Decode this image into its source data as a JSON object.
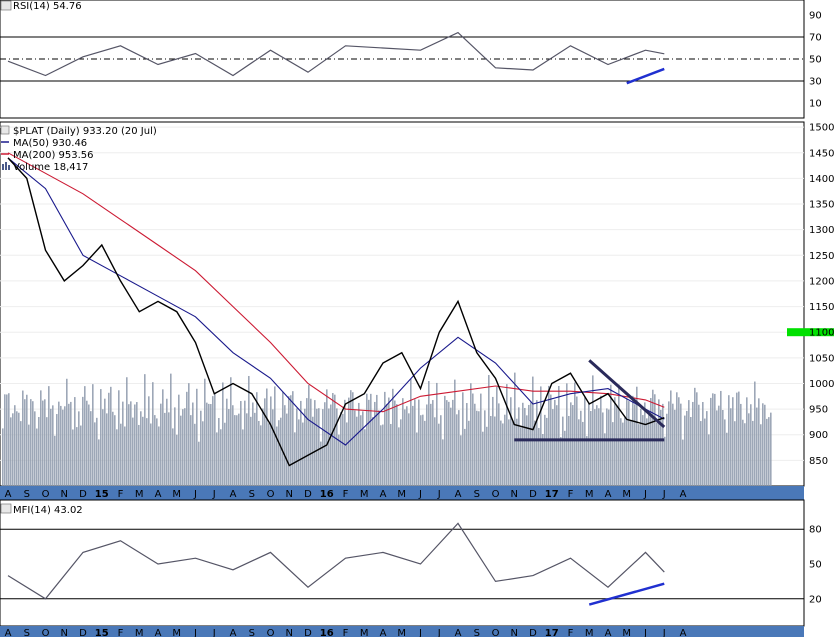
{
  "chart_data": [
    {
      "panel": "rsi",
      "type": "line",
      "title": "RSI(14) 54.76",
      "ylim": [
        0,
        100
      ],
      "y_ticks": [
        "90",
        "70",
        "50",
        "30",
        "10"
      ],
      "overbought": 70,
      "oversold": 30,
      "midline": 50,
      "series": [
        {
          "name": "RSI(14)",
          "x": [
            "Aug 2014",
            "Oct 2014",
            "Dec 2014",
            "Feb 2015",
            "Apr 2015",
            "Jun 2015",
            "Aug 2015",
            "Oct 2015",
            "Dec 2015",
            "Feb 2016",
            "Apr 2016",
            "Jun 2016",
            "Aug 2016",
            "Oct 2016",
            "Dec 2016",
            "Feb 2017",
            "Apr 2017",
            "Jun 2017",
            "Jul 2017"
          ],
          "values": [
            48,
            35,
            52,
            62,
            45,
            55,
            35,
            58,
            38,
            62,
            60,
            58,
            74,
            42,
            40,
            62,
            45,
            58,
            54.76
          ]
        }
      ],
      "trendline": {
        "x": [
          "May 2017",
          "Jul 2017"
        ],
        "values": [
          28,
          41
        ]
      }
    },
    {
      "panel": "price",
      "type": "line",
      "title": "$PLAT (Daily) 933.20 (20 Jul)",
      "legend": [
        "MA(50) 930.46",
        "MA(200) 953.56",
        "Volume 18,417"
      ],
      "ylim": [
        800,
        1510
      ],
      "y_ticks": [
        "1500",
        "1450",
        "1400",
        "1350",
        "1300",
        "1250",
        "1200",
        "1150",
        "1100",
        "1050",
        "1000",
        "950",
        "900",
        "850"
      ],
      "series": [
        {
          "name": "$PLAT",
          "x": [
            "Aug 2014",
            "Sep 2014",
            "Oct 2014",
            "Nov 2014",
            "Dec 2014",
            "Jan 2015",
            "Feb 2015",
            "Mar 2015",
            "Apr 2015",
            "May 2015",
            "Jun 2015",
            "Jul 2015",
            "Aug 2015",
            "Sep 2015",
            "Oct 2015",
            "Nov 2015",
            "Dec 2015",
            "Jan 2016",
            "Feb 2016",
            "Mar 2016",
            "Apr 2016",
            "May 2016",
            "Jun 2016",
            "Jul 2016",
            "Aug 2016",
            "Sep 2016",
            "Oct 2016",
            "Nov 2016",
            "Dec 2016",
            "Jan 2017",
            "Feb 2017",
            "Mar 2017",
            "Apr 2017",
            "May 2017",
            "Jun 2017",
            "Jul 2017"
          ],
          "values": [
            1440,
            1400,
            1260,
            1200,
            1230,
            1270,
            1200,
            1140,
            1160,
            1140,
            1080,
            980,
            1000,
            980,
            920,
            840,
            860,
            880,
            960,
            980,
            1040,
            1060,
            990,
            1100,
            1160,
            1060,
            1010,
            920,
            910,
            1000,
            1020,
            960,
            980,
            930,
            920,
            933.2
          ]
        },
        {
          "name": "MA(50) 930.46",
          "x": [
            "Aug 2014",
            "Oct 2014",
            "Dec 2014",
            "Feb 2015",
            "Apr 2015",
            "Jun 2015",
            "Aug 2015",
            "Oct 2015",
            "Dec 2015",
            "Feb 2016",
            "Apr 2016",
            "Jun 2016",
            "Aug 2016",
            "Oct 2016",
            "Dec 2016",
            "Feb 2017",
            "Apr 2017",
            "Jun 2017",
            "Jul 2017"
          ],
          "values": [
            1440,
            1380,
            1250,
            1210,
            1170,
            1130,
            1060,
            1010,
            930,
            880,
            950,
            1030,
            1090,
            1040,
            960,
            980,
            990,
            950,
            930.46
          ]
        },
        {
          "name": "MA(200) 953.56",
          "x": [
            "Aug 2014",
            "Oct 2014",
            "Dec 2014",
            "Feb 2015",
            "Apr 2015",
            "Jun 2015",
            "Aug 2015",
            "Oct 2015",
            "Dec 2015",
            "Feb 2016",
            "Apr 2016",
            "Jun 2016",
            "Aug 2016",
            "Oct 2016",
            "Dec 2016",
            "Feb 2017",
            "Apr 2017",
            "Jun 2017",
            "Jul 2017"
          ],
          "values": [
            1450,
            1410,
            1370,
            1320,
            1270,
            1220,
            1150,
            1080,
            1000,
            950,
            945,
            975,
            985,
            995,
            985,
            985,
            980,
            968,
            953.56
          ]
        }
      ],
      "resistance_trendline": {
        "x": [
          "Mar 2017",
          "Jul 2017"
        ],
        "values": [
          1045,
          915
        ]
      },
      "support_line": {
        "x": [
          "Nov 2016",
          "Jul 2017"
        ],
        "values": [
          890,
          890
        ]
      },
      "highlight_level": 1100,
      "highlight_color": "#00e000",
      "price_color": "#000000",
      "ma50_color": "#1a1a8c",
      "ma200_color": "#cc1a33",
      "volume_color": "#8c98aa",
      "trendline_color": "#2a2a5a"
    },
    {
      "panel": "mfi",
      "type": "line",
      "title": "MFI(14) 43.02",
      "ylim": [
        0,
        100
      ],
      "y_ticks": [
        "80",
        "50",
        "20"
      ],
      "overbought": 80,
      "oversold": 20,
      "series": [
        {
          "name": "MFI(14)",
          "x": [
            "Aug 2014",
            "Oct 2014",
            "Dec 2014",
            "Feb 2015",
            "Apr 2015",
            "Jun 2015",
            "Aug 2015",
            "Oct 2015",
            "Dec 2015",
            "Feb 2016",
            "Apr 2016",
            "Jun 2016",
            "Aug 2016",
            "Oct 2016",
            "Dec 2016",
            "Feb 2017",
            "Apr 2017",
            "Jun 2017",
            "Jul 2017"
          ],
          "values": [
            40,
            20,
            60,
            70,
            50,
            55,
            45,
            60,
            30,
            55,
            60,
            50,
            85,
            35,
            40,
            55,
            30,
            60,
            43.02
          ]
        }
      ],
      "trendline": {
        "x": [
          "Mar 2017",
          "Jul 2017"
        ],
        "values": [
          15,
          33
        ]
      }
    }
  ],
  "x_axis": {
    "labels": [
      "A",
      "S",
      "O",
      "N",
      "D",
      "15",
      "F",
      "M",
      "A",
      "M",
      "J",
      "J",
      "A",
      "S",
      "O",
      "N",
      "D",
      "16",
      "F",
      "M",
      "A",
      "M",
      "J",
      "J",
      "A",
      "S",
      "O",
      "N",
      "D",
      "17",
      "F",
      "M",
      "A",
      "M",
      "J",
      "J",
      "A"
    ],
    "bold_labels": [
      "15",
      "16",
      "17"
    ]
  },
  "colors": {
    "axis_bar": "#4a78b8",
    "rsi_line": "#555566",
    "mfi_line": "#555566",
    "fill_overbought": "#8c8c5a",
    "fill_oversold": "#8c3a5a",
    "blue_trend": "#2030d0"
  }
}
